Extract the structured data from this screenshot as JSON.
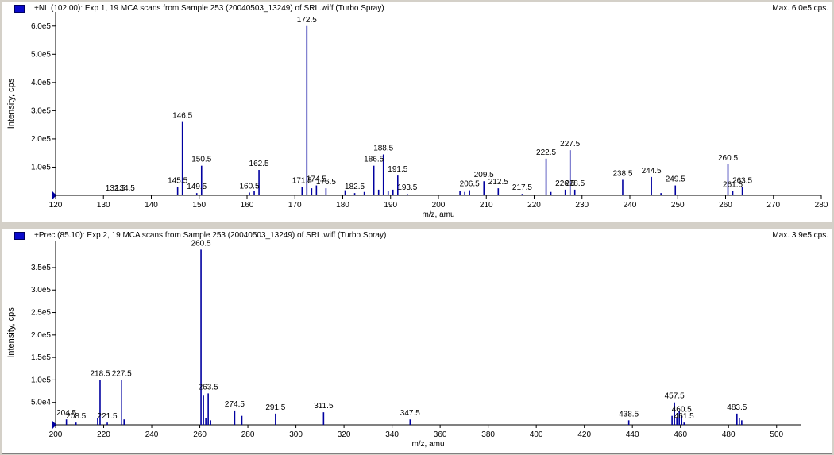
{
  "chart_data": [
    {
      "type": "bar",
      "title": "+NL (102.00): Exp 1, 19 MCA scans from Sample 253 (20040503_13249) of SRL.wiff (Turbo Spray)",
      "max_label": "Max. 6.0e5 cps.",
      "xlabel": "m/z, amu",
      "ylabel": "Intensity, cps",
      "xlim": [
        120,
        280
      ],
      "ylim": [
        0,
        650000
      ],
      "xticks": [
        120,
        130,
        140,
        150,
        160,
        170,
        180,
        190,
        200,
        210,
        220,
        230,
        240,
        250,
        260,
        270,
        280
      ],
      "xtick_labels": [
        "120",
        "130",
        "140",
        "150",
        "160",
        "170",
        "180",
        "190",
        "200",
        "210",
        "220",
        "230",
        "240",
        "250",
        "260",
        "270",
        "280"
      ],
      "yticks": [
        100000,
        200000,
        300000,
        400000,
        500000,
        600000
      ],
      "ytick_labels": [
        "1.0e5",
        "2.0e5",
        "3.0e5",
        "4.0e5",
        "5.0e5",
        "6.0e5"
      ],
      "color": "#0000a0",
      "peaks": [
        {
          "x": 132.5,
          "y": 2000
        },
        {
          "x": 134.5,
          "y": 2000
        },
        {
          "x": 145.5,
          "y": 30000
        },
        {
          "x": 146.5,
          "y": 260000
        },
        {
          "x": 149.5,
          "y": 8000
        },
        {
          "x": 150.5,
          "y": 105000
        },
        {
          "x": 160.5,
          "y": 10000
        },
        {
          "x": 161.5,
          "y": 15000
        },
        {
          "x": 162.5,
          "y": 90000
        },
        {
          "x": 171.5,
          "y": 30000
        },
        {
          "x": 172.5,
          "y": 600000
        },
        {
          "x": 173.5,
          "y": 25000
        },
        {
          "x": 174.5,
          "y": 35000
        },
        {
          "x": 176.5,
          "y": 25000
        },
        {
          "x": 180.5,
          "y": 18000
        },
        {
          "x": 182.5,
          "y": 8000
        },
        {
          "x": 184.5,
          "y": 12000
        },
        {
          "x": 186.5,
          "y": 105000
        },
        {
          "x": 187.5,
          "y": 20000
        },
        {
          "x": 188.5,
          "y": 145000
        },
        {
          "x": 189.5,
          "y": 15000
        },
        {
          "x": 190.5,
          "y": 20000
        },
        {
          "x": 191.5,
          "y": 70000
        },
        {
          "x": 193.5,
          "y": 5000
        },
        {
          "x": 204.5,
          "y": 15000
        },
        {
          "x": 205.5,
          "y": 12000
        },
        {
          "x": 206.5,
          "y": 18000
        },
        {
          "x": 209.5,
          "y": 50000
        },
        {
          "x": 212.5,
          "y": 25000
        },
        {
          "x": 217.5,
          "y": 5000
        },
        {
          "x": 222.5,
          "y": 130000
        },
        {
          "x": 223.5,
          "y": 12000
        },
        {
          "x": 226.5,
          "y": 20000
        },
        {
          "x": 227.5,
          "y": 160000
        },
        {
          "x": 228.5,
          "y": 20000
        },
        {
          "x": 238.5,
          "y": 55000
        },
        {
          "x": 244.5,
          "y": 65000
        },
        {
          "x": 246.5,
          "y": 8000
        },
        {
          "x": 249.5,
          "y": 35000
        },
        {
          "x": 260.5,
          "y": 110000
        },
        {
          "x": 261.5,
          "y": 15000
        },
        {
          "x": 263.5,
          "y": 30000
        }
      ],
      "peak_labels": [
        {
          "x": 132.5,
          "text": "132.5"
        },
        {
          "x": 134.5,
          "text": "134.5"
        },
        {
          "x": 145.5,
          "text": "145.5"
        },
        {
          "x": 146.5,
          "text": "146.5"
        },
        {
          "x": 149.5,
          "text": "149.5"
        },
        {
          "x": 150.5,
          "text": "150.5"
        },
        {
          "x": 160.5,
          "text": "160.5"
        },
        {
          "x": 162.5,
          "text": "162.5"
        },
        {
          "x": 171.5,
          "text": "171.5"
        },
        {
          "x": 172.5,
          "text": "172.5"
        },
        {
          "x": 174.5,
          "text": "174.5"
        },
        {
          "x": 176.5,
          "text": "176.5"
        },
        {
          "x": 182.5,
          "text": "182.5"
        },
        {
          "x": 186.5,
          "text": "186.5"
        },
        {
          "x": 188.5,
          "text": "188.5"
        },
        {
          "x": 191.5,
          "text": "191.5"
        },
        {
          "x": 193.5,
          "text": "193.5"
        },
        {
          "x": 206.5,
          "text": "206.5"
        },
        {
          "x": 209.5,
          "text": "209.5"
        },
        {
          "x": 212.5,
          "text": "212.5"
        },
        {
          "x": 217.5,
          "text": "217.5"
        },
        {
          "x": 222.5,
          "text": "222.5"
        },
        {
          "x": 226.5,
          "text": "226.5"
        },
        {
          "x": 227.5,
          "text": "227.5"
        },
        {
          "x": 228.5,
          "text": "228.5"
        },
        {
          "x": 238.5,
          "text": "238.5"
        },
        {
          "x": 244.5,
          "text": "244.5"
        },
        {
          "x": 249.5,
          "text": "249.5"
        },
        {
          "x": 260.5,
          "text": "260.5"
        },
        {
          "x": 261.5,
          "text": "261.5"
        },
        {
          "x": 263.5,
          "text": "263.5"
        }
      ]
    },
    {
      "type": "bar",
      "title": "+Prec (85.10): Exp 2, 19 MCA scans from Sample 253 (20040503_13249) of SRL.wiff (Turbo Spray)",
      "max_label": "Max. 3.9e5 cps.",
      "xlabel": "m/z, amu",
      "ylabel": "Intensity, cps",
      "xlim": [
        200,
        510
      ],
      "ylim": [
        0,
        410000
      ],
      "xticks": [
        200,
        220,
        240,
        260,
        280,
        300,
        320,
        340,
        360,
        380,
        400,
        420,
        440,
        460,
        480,
        500
      ],
      "xtick_labels": [
        "200",
        "220",
        "240",
        "260",
        "280",
        "300",
        "320",
        "340",
        "360",
        "380",
        "400",
        "420",
        "440",
        "460",
        "480",
        "500"
      ],
      "yticks": [
        50000,
        100000,
        150000,
        200000,
        250000,
        300000,
        350000
      ],
      "ytick_labels": [
        "5.0e4",
        "1.0e5",
        "1.5e5",
        "2.0e5",
        "2.5e5",
        "3.0e5",
        "3.5e5"
      ],
      "color": "#0000a0",
      "peaks": [
        {
          "x": 204.5,
          "y": 12000
        },
        {
          "x": 208.5,
          "y": 5000
        },
        {
          "x": 217.5,
          "y": 15000
        },
        {
          "x": 218.5,
          "y": 100000
        },
        {
          "x": 221.5,
          "y": 5000
        },
        {
          "x": 227.5,
          "y": 100000
        },
        {
          "x": 228.5,
          "y": 12000
        },
        {
          "x": 260.5,
          "y": 390000
        },
        {
          "x": 261.5,
          "y": 65000
        },
        {
          "x": 262.5,
          "y": 15000
        },
        {
          "x": 263.5,
          "y": 70000
        },
        {
          "x": 264.5,
          "y": 10000
        },
        {
          "x": 274.5,
          "y": 32000
        },
        {
          "x": 277.5,
          "y": 20000
        },
        {
          "x": 291.5,
          "y": 25000
        },
        {
          "x": 311.5,
          "y": 28000
        },
        {
          "x": 347.5,
          "y": 12000
        },
        {
          "x": 438.5,
          "y": 10000
        },
        {
          "x": 456.5,
          "y": 20000
        },
        {
          "x": 457.5,
          "y": 50000
        },
        {
          "x": 458.5,
          "y": 15000
        },
        {
          "x": 459.5,
          "y": 30000
        },
        {
          "x": 460.5,
          "y": 20000
        },
        {
          "x": 461.5,
          "y": 5000
        },
        {
          "x": 483.5,
          "y": 25000
        },
        {
          "x": 484.5,
          "y": 15000
        },
        {
          "x": 485.5,
          "y": 10000
        }
      ],
      "peak_labels": [
        {
          "x": 204.5,
          "text": "204.5"
        },
        {
          "x": 208.5,
          "text": "208.5"
        },
        {
          "x": 218.5,
          "text": "218.5"
        },
        {
          "x": 221.5,
          "text": "221.5"
        },
        {
          "x": 227.5,
          "text": "227.5"
        },
        {
          "x": 260.5,
          "text": "260.5"
        },
        {
          "x": 263.5,
          "text": "263.5"
        },
        {
          "x": 274.5,
          "text": "274.5"
        },
        {
          "x": 291.5,
          "text": "291.5"
        },
        {
          "x": 311.5,
          "text": "311.5"
        },
        {
          "x": 347.5,
          "text": "347.5"
        },
        {
          "x": 438.5,
          "text": "438.5"
        },
        {
          "x": 457.5,
          "text": "457.5"
        },
        {
          "x": 460.5,
          "text": "460.5"
        },
        {
          "x": 461.5,
          "text": "461.5"
        },
        {
          "x": 483.5,
          "text": "483.5"
        }
      ]
    }
  ]
}
